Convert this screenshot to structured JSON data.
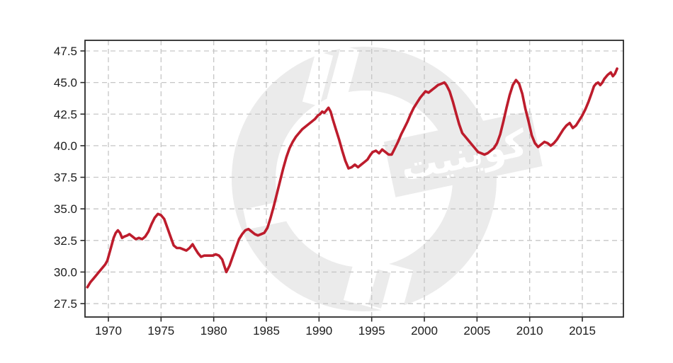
{
  "watermark": {
    "text": "کوینیت"
  },
  "chart_data": {
    "type": "line",
    "title": "",
    "xlabel": "",
    "ylabel": "",
    "xlim": [
      1967.78,
      2018.9
    ],
    "ylim": [
      26.44,
      48.34
    ],
    "x_ticks": [
      1970,
      1975,
      1980,
      1985,
      1990,
      1995,
      2000,
      2005,
      2010,
      2015
    ],
    "y_ticks": [
      "27.5",
      "30.0",
      "32.5",
      "35.0",
      "37.5",
      "40.0",
      "42.5",
      "45.0",
      "47.5"
    ],
    "grid": "dashed",
    "legend": "none",
    "colors": {
      "line": "#bd1c2c",
      "spine": "#2a2a2a",
      "gridline": "#c6c6c6",
      "tick_label": "#1c1c1c",
      "watermark_gray": "#ebebeb"
    },
    "series": [
      {
        "points": [
          [
            1968.0,
            28.8
          ],
          [
            1968.3,
            29.2
          ],
          [
            1968.6,
            29.5
          ],
          [
            1968.9,
            29.8
          ],
          [
            1969.1,
            30.0
          ],
          [
            1969.4,
            30.3
          ],
          [
            1969.7,
            30.6
          ],
          [
            1969.9,
            30.9
          ],
          [
            1970.1,
            31.5
          ],
          [
            1970.3,
            32.1
          ],
          [
            1970.5,
            32.7
          ],
          [
            1970.7,
            33.1
          ],
          [
            1970.9,
            33.3
          ],
          [
            1971.1,
            33.1
          ],
          [
            1971.3,
            32.7
          ],
          [
            1971.5,
            32.8
          ],
          [
            1971.8,
            32.9
          ],
          [
            1972.0,
            33.0
          ],
          [
            1972.3,
            32.8
          ],
          [
            1972.6,
            32.6
          ],
          [
            1972.9,
            32.7
          ],
          [
            1973.2,
            32.6
          ],
          [
            1973.5,
            32.8
          ],
          [
            1973.8,
            33.2
          ],
          [
            1974.1,
            33.8
          ],
          [
            1974.4,
            34.3
          ],
          [
            1974.7,
            34.6
          ],
          [
            1975.0,
            34.5
          ],
          [
            1975.3,
            34.2
          ],
          [
            1975.6,
            33.5
          ],
          [
            1975.9,
            32.8
          ],
          [
            1976.2,
            32.1
          ],
          [
            1976.5,
            31.9
          ],
          [
            1976.8,
            31.9
          ],
          [
            1977.1,
            31.8
          ],
          [
            1977.4,
            31.7
          ],
          [
            1977.7,
            31.9
          ],
          [
            1978.0,
            32.2
          ],
          [
            1978.2,
            31.9
          ],
          [
            1978.5,
            31.5
          ],
          [
            1978.8,
            31.2
          ],
          [
            1979.1,
            31.3
          ],
          [
            1979.5,
            31.3
          ],
          [
            1979.9,
            31.3
          ],
          [
            1980.2,
            31.4
          ],
          [
            1980.5,
            31.3
          ],
          [
            1980.8,
            31.0
          ],
          [
            1981.0,
            30.5
          ],
          [
            1981.2,
            30.0
          ],
          [
            1981.5,
            30.5
          ],
          [
            1981.8,
            31.2
          ],
          [
            1982.1,
            31.9
          ],
          [
            1982.4,
            32.6
          ],
          [
            1982.7,
            33.0
          ],
          [
            1983.0,
            33.3
          ],
          [
            1983.3,
            33.4
          ],
          [
            1983.6,
            33.2
          ],
          [
            1983.9,
            33.0
          ],
          [
            1984.2,
            32.9
          ],
          [
            1984.5,
            33.0
          ],
          [
            1984.8,
            33.1
          ],
          [
            1985.1,
            33.5
          ],
          [
            1985.4,
            34.3
          ],
          [
            1985.7,
            35.2
          ],
          [
            1986.0,
            36.2
          ],
          [
            1986.3,
            37.2
          ],
          [
            1986.6,
            38.2
          ],
          [
            1986.9,
            39.1
          ],
          [
            1987.2,
            39.8
          ],
          [
            1987.5,
            40.3
          ],
          [
            1987.8,
            40.7
          ],
          [
            1988.1,
            41.0
          ],
          [
            1988.4,
            41.3
          ],
          [
            1988.7,
            41.5
          ],
          [
            1989.0,
            41.7
          ],
          [
            1989.3,
            41.9
          ],
          [
            1989.6,
            42.1
          ],
          [
            1989.9,
            42.4
          ],
          [
            1990.1,
            42.5
          ],
          [
            1990.3,
            42.7
          ],
          [
            1990.5,
            42.6
          ],
          [
            1990.7,
            42.8
          ],
          [
            1990.9,
            43.0
          ],
          [
            1991.1,
            42.7
          ],
          [
            1991.3,
            42.1
          ],
          [
            1991.6,
            41.3
          ],
          [
            1991.9,
            40.5
          ],
          [
            1992.2,
            39.6
          ],
          [
            1992.5,
            38.8
          ],
          [
            1992.8,
            38.2
          ],
          [
            1993.1,
            38.3
          ],
          [
            1993.4,
            38.5
          ],
          [
            1993.7,
            38.3
          ],
          [
            1994.0,
            38.5
          ],
          [
            1994.3,
            38.7
          ],
          [
            1994.6,
            38.9
          ],
          [
            1994.9,
            39.3
          ],
          [
            1995.1,
            39.5
          ],
          [
            1995.4,
            39.6
          ],
          [
            1995.7,
            39.4
          ],
          [
            1996.0,
            39.7
          ],
          [
            1996.3,
            39.5
          ],
          [
            1996.6,
            39.3
          ],
          [
            1996.9,
            39.3
          ],
          [
            1997.2,
            39.8
          ],
          [
            1997.5,
            40.3
          ],
          [
            1997.8,
            40.9
          ],
          [
            1998.1,
            41.4
          ],
          [
            1998.4,
            41.9
          ],
          [
            1998.7,
            42.5
          ],
          [
            1999.0,
            43.0
          ],
          [
            1999.3,
            43.4
          ],
          [
            1999.6,
            43.8
          ],
          [
            1999.9,
            44.1
          ],
          [
            2000.1,
            44.3
          ],
          [
            2000.4,
            44.2
          ],
          [
            2000.7,
            44.4
          ],
          [
            2001.0,
            44.6
          ],
          [
            2001.3,
            44.8
          ],
          [
            2001.6,
            44.9
          ],
          [
            2001.9,
            45.0
          ],
          [
            2002.1,
            44.8
          ],
          [
            2002.4,
            44.3
          ],
          [
            2002.7,
            43.5
          ],
          [
            2003.0,
            42.6
          ],
          [
            2003.3,
            41.7
          ],
          [
            2003.6,
            41.0
          ],
          [
            2003.9,
            40.7
          ],
          [
            2004.2,
            40.4
          ],
          [
            2004.5,
            40.1
          ],
          [
            2004.8,
            39.8
          ],
          [
            2005.1,
            39.5
          ],
          [
            2005.4,
            39.4
          ],
          [
            2005.7,
            39.3
          ],
          [
            2006.0,
            39.4
          ],
          [
            2006.3,
            39.6
          ],
          [
            2006.6,
            39.8
          ],
          [
            2006.9,
            40.2
          ],
          [
            2007.2,
            40.9
          ],
          [
            2007.5,
            41.9
          ],
          [
            2007.8,
            43.0
          ],
          [
            2008.1,
            44.0
          ],
          [
            2008.4,
            44.8
          ],
          [
            2008.7,
            45.2
          ],
          [
            2009.0,
            44.9
          ],
          [
            2009.3,
            44.1
          ],
          [
            2009.6,
            42.9
          ],
          [
            2009.9,
            41.9
          ],
          [
            2010.2,
            40.8
          ],
          [
            2010.5,
            40.2
          ],
          [
            2010.8,
            39.9
          ],
          [
            2011.1,
            40.1
          ],
          [
            2011.4,
            40.3
          ],
          [
            2011.7,
            40.2
          ],
          [
            2012.0,
            40.0
          ],
          [
            2012.3,
            40.2
          ],
          [
            2012.6,
            40.5
          ],
          [
            2012.9,
            40.9
          ],
          [
            2013.2,
            41.3
          ],
          [
            2013.5,
            41.6
          ],
          [
            2013.8,
            41.8
          ],
          [
            2014.1,
            41.4
          ],
          [
            2014.4,
            41.6
          ],
          [
            2014.7,
            42.0
          ],
          [
            2015.0,
            42.4
          ],
          [
            2015.3,
            42.9
          ],
          [
            2015.6,
            43.5
          ],
          [
            2015.9,
            44.2
          ],
          [
            2016.1,
            44.7
          ],
          [
            2016.3,
            44.9
          ],
          [
            2016.5,
            45.0
          ],
          [
            2016.7,
            44.8
          ],
          [
            2016.9,
            45.0
          ],
          [
            2017.1,
            45.3
          ],
          [
            2017.4,
            45.6
          ],
          [
            2017.7,
            45.8
          ],
          [
            2017.9,
            45.5
          ],
          [
            2018.1,
            45.7
          ],
          [
            2018.3,
            46.1
          ]
        ]
      }
    ]
  }
}
